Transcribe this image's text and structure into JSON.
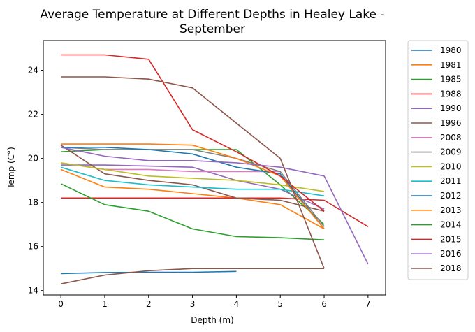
{
  "chart_data": {
    "type": "line",
    "title_line1": "Average Temperature at Different Depths in Healey Lake -",
    "title_line2": "September",
    "xlabel": "Depth (m)",
    "ylabel": "Temp (C°)",
    "xlim": [
      -0.4,
      7.4
    ],
    "ylim": [
      13.8,
      25.35
    ],
    "xticks": [
      "0",
      "1",
      "2",
      "3",
      "4",
      "5",
      "6",
      "7"
    ],
    "yticks": [
      "14",
      "16",
      "18",
      "20",
      "22",
      "24"
    ],
    "legend_position": "outside-right",
    "grid": false,
    "series": [
      {
        "name": "1980",
        "color": "#1f77b4",
        "x": [
          0,
          1,
          2,
          3,
          4
        ],
        "y": [
          14.77,
          14.82,
          14.83,
          14.83,
          14.87
        ]
      },
      {
        "name": "1981",
        "color": "#ff7f0e",
        "x": [
          0,
          1,
          2,
          3,
          4,
          5,
          6
        ],
        "y": [
          19.5,
          18.7,
          18.6,
          18.4,
          18.2,
          17.9,
          16.8
        ]
      },
      {
        "name": "1985",
        "color": "#2ca02c",
        "x": [
          0,
          1,
          2,
          3,
          4,
          5,
          6
        ],
        "y": [
          20.3,
          20.4,
          20.4,
          20.4,
          20.4,
          18.8,
          17.0
        ]
      },
      {
        "name": "1988",
        "color": "#d62728",
        "x": [
          0,
          1,
          2,
          3,
          4,
          5,
          6,
          7
        ],
        "y": [
          18.2,
          18.2,
          18.2,
          18.2,
          18.2,
          18.2,
          18.1,
          16.9
        ]
      },
      {
        "name": "1990",
        "color": "#9467bd",
        "x": [
          0,
          1,
          2,
          3,
          4,
          5,
          6
        ],
        "y": [
          19.7,
          19.7,
          19.65,
          19.6,
          19.0,
          18.6,
          17.7
        ]
      },
      {
        "name": "1996",
        "color": "#8c564b",
        "x": [
          0,
          1,
          2,
          3,
          4,
          5,
          6
        ],
        "y": [
          20.6,
          19.3,
          19.0,
          18.8,
          18.2,
          18.1,
          17.6
        ]
      },
      {
        "name": "2008",
        "color": "#e377c2",
        "x": [
          0,
          1,
          2,
          3,
          4,
          5
        ],
        "y": [
          19.8,
          19.5,
          19.5,
          19.4,
          19.4,
          19.4
        ]
      },
      {
        "name": "2009",
        "color": "#7f7f7f",
        "x": [
          0,
          1,
          2,
          3,
          4,
          5,
          6
        ],
        "y": [
          20.5,
          20.4,
          20.4,
          20.4,
          20.0,
          19.4,
          16.9
        ]
      },
      {
        "name": "2010",
        "color": "#bcbd22",
        "x": [
          0,
          1,
          2,
          3,
          4,
          5,
          6
        ],
        "y": [
          19.8,
          19.5,
          19.2,
          19.1,
          19.0,
          18.8,
          18.5
        ]
      },
      {
        "name": "2011",
        "color": "#17becf",
        "x": [
          0,
          1,
          2,
          3,
          4,
          5,
          6
        ],
        "y": [
          19.6,
          19.0,
          18.8,
          18.7,
          18.6,
          18.6,
          18.3
        ]
      },
      {
        "name": "2012",
        "color": "#1f77b4",
        "x": [
          0,
          1,
          2,
          3,
          4,
          5,
          6
        ],
        "y": [
          20.5,
          20.5,
          20.4,
          20.2,
          19.6,
          19.3,
          16.8
        ]
      },
      {
        "name": "2013",
        "color": "#ff7f0e",
        "x": [
          0,
          1,
          2,
          3,
          4,
          5,
          6
        ],
        "y": [
          20.65,
          20.65,
          20.65,
          20.6,
          20.0,
          19.2,
          16.8
        ]
      },
      {
        "name": "2014",
        "color": "#2ca02c",
        "x": [
          0,
          1,
          2,
          3,
          4,
          5,
          6
        ],
        "y": [
          18.85,
          17.9,
          17.6,
          16.8,
          16.45,
          16.4,
          16.3
        ]
      },
      {
        "name": "2015",
        "color": "#d62728",
        "x": [
          0,
          1,
          2,
          3,
          4,
          5,
          6
        ],
        "y": [
          24.7,
          24.7,
          24.5,
          21.3,
          20.3,
          19.2,
          17.6
        ]
      },
      {
        "name": "2016",
        "color": "#9467bd",
        "x": [
          0,
          1,
          2,
          3,
          4,
          5,
          6,
          7
        ],
        "y": [
          20.5,
          20.1,
          19.9,
          19.9,
          19.8,
          19.6,
          19.2,
          15.2
        ]
      },
      {
        "name": "2018",
        "color": "#8c564b",
        "x": [
          0,
          1,
          2,
          3,
          4,
          5,
          6
        ],
        "y": [
          14.3,
          14.7,
          14.9,
          15.0,
          15.0,
          15.0,
          15.0
        ]
      },
      {
        "name": "1996 upper",
        "legend": false,
        "color": "#8c564b",
        "x": [
          0,
          1,
          2,
          3,
          5,
          6
        ],
        "y": [
          23.7,
          23.7,
          23.6,
          23.2,
          20.0,
          15.0
        ]
      }
    ]
  }
}
